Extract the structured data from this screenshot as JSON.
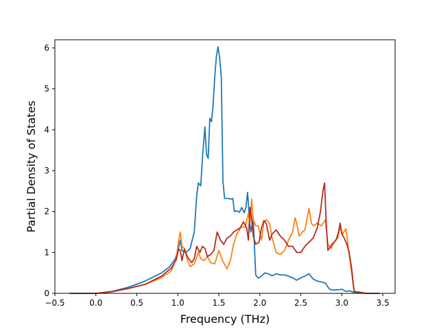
{
  "chart_data": {
    "type": "line",
    "xlabel": "Frequency (THz)",
    "ylabel": "Partial Density of States",
    "xlim": [
      -0.5,
      3.65
    ],
    "ylim": [
      0,
      6.2
    ],
    "xticks": [
      -0.5,
      0.0,
      0.5,
      1.0,
      1.5,
      2.0,
      2.5,
      3.0,
      3.5
    ],
    "xtick_labels": [
      "−0.5",
      "0.0",
      "0.5",
      "1.0",
      "1.5",
      "2.0",
      "2.5",
      "3.0",
      "3.5"
    ],
    "yticks": [
      0,
      1,
      2,
      3,
      4,
      5,
      6
    ],
    "ytick_labels": [
      "0",
      "1",
      "2",
      "3",
      "4",
      "5",
      "6"
    ],
    "grid": false,
    "series": [
      {
        "color": "#1f77b4",
        "points": [
          [
            -0.32,
            0
          ],
          [
            0.0,
            0.0
          ],
          [
            0.2,
            0.05
          ],
          [
            0.4,
            0.15
          ],
          [
            0.6,
            0.3
          ],
          [
            0.8,
            0.5
          ],
          [
            0.9,
            0.65
          ],
          [
            0.97,
            0.85
          ],
          [
            1.0,
            1.05
          ],
          [
            1.03,
            1.3
          ],
          [
            1.05,
            1.05
          ],
          [
            1.1,
            1.0
          ],
          [
            1.15,
            1.1
          ],
          [
            1.2,
            1.5
          ],
          [
            1.23,
            2.4
          ],
          [
            1.25,
            2.7
          ],
          [
            1.28,
            2.63
          ],
          [
            1.3,
            3.3
          ],
          [
            1.33,
            4.07
          ],
          [
            1.35,
            3.4
          ],
          [
            1.37,
            3.3
          ],
          [
            1.39,
            4.28
          ],
          [
            1.41,
            4.2
          ],
          [
            1.43,
            4.6
          ],
          [
            1.45,
            5.3
          ],
          [
            1.47,
            5.8
          ],
          [
            1.49,
            6.03
          ],
          [
            1.51,
            5.75
          ],
          [
            1.53,
            5.3
          ],
          [
            1.55,
            2.75
          ],
          [
            1.57,
            2.32
          ],
          [
            1.62,
            2.32
          ],
          [
            1.65,
            2.3
          ],
          [
            1.67,
            2.32
          ],
          [
            1.69,
            2.0
          ],
          [
            1.72,
            2.02
          ],
          [
            1.75,
            1.98
          ],
          [
            1.78,
            2.1
          ],
          [
            1.81,
            1.97
          ],
          [
            1.83,
            2.1
          ],
          [
            1.85,
            2.47
          ],
          [
            1.87,
            1.9
          ],
          [
            1.89,
            1.5
          ],
          [
            1.92,
            1.8
          ],
          [
            1.95,
            0.45
          ],
          [
            1.98,
            0.37
          ],
          [
            2.02,
            0.42
          ],
          [
            2.06,
            0.5
          ],
          [
            2.1,
            0.48
          ],
          [
            2.15,
            0.43
          ],
          [
            2.2,
            0.48
          ],
          [
            2.25,
            0.45
          ],
          [
            2.3,
            0.45
          ],
          [
            2.35,
            0.42
          ],
          [
            2.4,
            0.38
          ],
          [
            2.45,
            0.32
          ],
          [
            2.5,
            0.38
          ],
          [
            2.55,
            0.42
          ],
          [
            2.6,
            0.48
          ],
          [
            2.65,
            0.35
          ],
          [
            2.7,
            0.3
          ],
          [
            2.75,
            0.28
          ],
          [
            2.8,
            0.25
          ],
          [
            2.85,
            0.1
          ],
          [
            2.9,
            0.08
          ],
          [
            2.97,
            0.09
          ],
          [
            3.0,
            0.1
          ],
          [
            3.05,
            0.05
          ],
          [
            3.1,
            0.06
          ],
          [
            3.15,
            0.02
          ],
          [
            3.3,
            0
          ],
          [
            3.46,
            0
          ]
        ]
      },
      {
        "color": "#ff7f0e",
        "points": [
          [
            -0.32,
            0
          ],
          [
            0.0,
            0.0
          ],
          [
            0.2,
            0.04
          ],
          [
            0.4,
            0.12
          ],
          [
            0.6,
            0.22
          ],
          [
            0.8,
            0.38
          ],
          [
            0.92,
            0.55
          ],
          [
            0.98,
            0.85
          ],
          [
            1.01,
            1.3
          ],
          [
            1.03,
            1.5
          ],
          [
            1.05,
            1.15
          ],
          [
            1.08,
            1.1
          ],
          [
            1.12,
            0.8
          ],
          [
            1.15,
            0.65
          ],
          [
            1.2,
            0.72
          ],
          [
            1.25,
            1.0
          ],
          [
            1.28,
            0.85
          ],
          [
            1.32,
            0.8
          ],
          [
            1.36,
            0.9
          ],
          [
            1.4,
            0.75
          ],
          [
            1.45,
            0.72
          ],
          [
            1.5,
            1.05
          ],
          [
            1.55,
            0.78
          ],
          [
            1.6,
            0.6
          ],
          [
            1.64,
            0.8
          ],
          [
            1.68,
            1.2
          ],
          [
            1.72,
            1.45
          ],
          [
            1.77,
            1.62
          ],
          [
            1.82,
            1.62
          ],
          [
            1.86,
            1.95
          ],
          [
            1.88,
            1.7
          ],
          [
            1.9,
            2.3
          ],
          [
            1.92,
            1.8
          ],
          [
            1.95,
            1.65
          ],
          [
            1.98,
            1.65
          ],
          [
            2.02,
            1.3
          ],
          [
            2.05,
            1.75
          ],
          [
            2.08,
            1.8
          ],
          [
            2.12,
            1.7
          ],
          [
            2.15,
            1.35
          ],
          [
            2.2,
            1.0
          ],
          [
            2.25,
            0.95
          ],
          [
            2.3,
            1.05
          ],
          [
            2.35,
            1.3
          ],
          [
            2.4,
            1.5
          ],
          [
            2.43,
            1.85
          ],
          [
            2.45,
            1.7
          ],
          [
            2.48,
            1.4
          ],
          [
            2.52,
            1.5
          ],
          [
            2.55,
            1.55
          ],
          [
            2.6,
            2.08
          ],
          [
            2.63,
            1.7
          ],
          [
            2.66,
            1.65
          ],
          [
            2.7,
            1.72
          ],
          [
            2.75,
            1.65
          ],
          [
            2.8,
            1.8
          ],
          [
            2.83,
            1.2
          ],
          [
            2.87,
            1.1
          ],
          [
            2.92,
            1.3
          ],
          [
            2.95,
            1.35
          ],
          [
            2.98,
            1.62
          ],
          [
            3.01,
            1.45
          ],
          [
            3.05,
            1.58
          ],
          [
            3.08,
            1.1
          ],
          [
            3.12,
            0.5
          ],
          [
            3.15,
            0.05
          ],
          [
            3.3,
            0
          ],
          [
            3.46,
            0
          ]
        ]
      },
      {
        "color": "#b22a1c",
        "points": [
          [
            -0.32,
            0
          ],
          [
            0.0,
            0.0
          ],
          [
            0.2,
            0.04
          ],
          [
            0.4,
            0.12
          ],
          [
            0.6,
            0.22
          ],
          [
            0.8,
            0.42
          ],
          [
            0.92,
            0.62
          ],
          [
            0.98,
            0.82
          ],
          [
            1.01,
            1.08
          ],
          [
            1.03,
            1.05
          ],
          [
            1.05,
            0.8
          ],
          [
            1.08,
            1.08
          ],
          [
            1.12,
            0.88
          ],
          [
            1.17,
            0.75
          ],
          [
            1.2,
            0.85
          ],
          [
            1.23,
            1.15
          ],
          [
            1.27,
            1.0
          ],
          [
            1.3,
            1.15
          ],
          [
            1.33,
            1.1
          ],
          [
            1.36,
            0.9
          ],
          [
            1.4,
            0.95
          ],
          [
            1.44,
            1.05
          ],
          [
            1.48,
            1.5
          ],
          [
            1.52,
            1.3
          ],
          [
            1.56,
            1.2
          ],
          [
            1.6,
            1.35
          ],
          [
            1.64,
            1.4
          ],
          [
            1.68,
            1.5
          ],
          [
            1.72,
            1.55
          ],
          [
            1.76,
            1.6
          ],
          [
            1.8,
            1.75
          ],
          [
            1.84,
            1.6
          ],
          [
            1.86,
            1.3
          ],
          [
            1.88,
            2.1
          ],
          [
            1.9,
            1.85
          ],
          [
            1.92,
            1.4
          ],
          [
            1.95,
            1.2
          ],
          [
            1.99,
            1.25
          ],
          [
            2.02,
            1.6
          ],
          [
            2.05,
            1.78
          ],
          [
            2.08,
            1.7
          ],
          [
            2.12,
            1.3
          ],
          [
            2.15,
            1.45
          ],
          [
            2.2,
            1.55
          ],
          [
            2.25,
            1.4
          ],
          [
            2.3,
            1.3
          ],
          [
            2.35,
            1.15
          ],
          [
            2.4,
            1.15
          ],
          [
            2.45,
            1.0
          ],
          [
            2.5,
            1.0
          ],
          [
            2.55,
            1.15
          ],
          [
            2.6,
            1.25
          ],
          [
            2.65,
            1.35
          ],
          [
            2.7,
            1.6
          ],
          [
            2.74,
            2.0
          ],
          [
            2.77,
            2.5
          ],
          [
            2.79,
            2.7
          ],
          [
            2.81,
            1.7
          ],
          [
            2.83,
            1.05
          ],
          [
            2.88,
            1.2
          ],
          [
            2.93,
            1.3
          ],
          [
            2.96,
            1.5
          ],
          [
            2.98,
            1.72
          ],
          [
            3.0,
            1.45
          ],
          [
            3.03,
            1.35
          ],
          [
            3.06,
            1.2
          ],
          [
            3.09,
            1.0
          ],
          [
            3.12,
            0.6
          ],
          [
            3.15,
            0.05
          ],
          [
            3.3,
            0
          ],
          [
            3.46,
            0
          ]
        ]
      }
    ]
  }
}
